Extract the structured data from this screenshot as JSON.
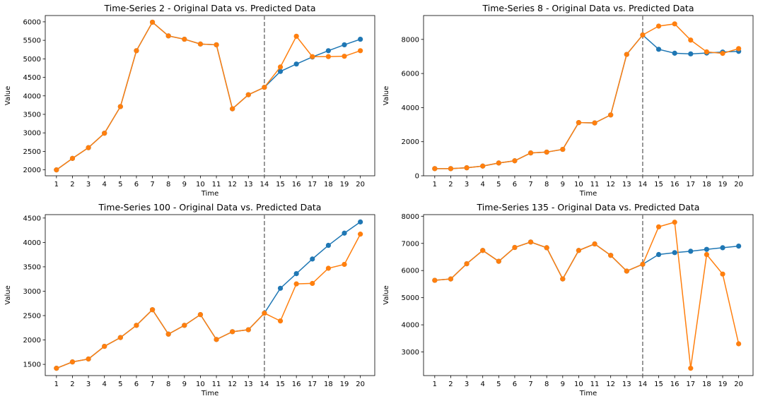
{
  "colors": {
    "original": "#1f77b4",
    "predicted": "#ff7f0e",
    "divider": "#808080"
  },
  "chart_data": [
    {
      "type": "line",
      "title": "Time-Series 2 - Original Data vs. Predicted Data",
      "xlabel": "Time",
      "ylabel": "Value",
      "x": [
        1,
        2,
        3,
        4,
        5,
        6,
        7,
        8,
        9,
        10,
        11,
        12,
        13,
        14,
        15,
        16,
        17,
        18,
        19,
        20
      ],
      "xlim": [
        0.3,
        20.9
      ],
      "ylim": [
        1840,
        6170
      ],
      "yticks": [
        2000,
        2500,
        3000,
        3500,
        4000,
        4500,
        5000,
        5500,
        6000
      ],
      "divider_x": 14,
      "series": [
        {
          "values": [
            2000,
            2310,
            2600,
            2990,
            3710,
            5220,
            5990,
            5620,
            5530,
            5400,
            5380,
            3650,
            4030,
            4230,
            4660,
            4860,
            5050,
            5220,
            5380,
            5530
          ]
        },
        {
          "values": [
            2000,
            2310,
            2600,
            2990,
            3710,
            5220,
            5990,
            5620,
            5530,
            5400,
            5380,
            3650,
            4030,
            4230,
            4780,
            5610,
            5060,
            5060,
            5070,
            5220
          ]
        }
      ]
    },
    {
      "type": "line",
      "title": "Time-Series 8 - Original Data vs. Predicted Data",
      "xlabel": "Time",
      "ylabel": "Value",
      "x": [
        1,
        2,
        3,
        4,
        5,
        6,
        7,
        8,
        9,
        10,
        11,
        12,
        13,
        14,
        15,
        16,
        17,
        18,
        19,
        20
      ],
      "xlim": [
        0.3,
        20.9
      ],
      "ylim": [
        0,
        9400
      ],
      "yticks": [
        0,
        2000,
        4000,
        6000,
        8000
      ],
      "divider_x": 14,
      "series": [
        {
          "values": [
            420,
            420,
            470,
            570,
            750,
            880,
            1340,
            1390,
            1550,
            3120,
            3100,
            3570,
            7120,
            8260,
            7420,
            7190,
            7150,
            7200,
            7260,
            7300
          ]
        },
        {
          "values": [
            420,
            420,
            470,
            570,
            750,
            880,
            1340,
            1390,
            1550,
            3120,
            3100,
            3570,
            7120,
            8260,
            8780,
            8910,
            7960,
            7270,
            7180,
            7460
          ]
        }
      ]
    },
    {
      "type": "line",
      "title": "Time-Series 100 - Original Data vs. Predicted Data",
      "xlabel": "Time",
      "ylabel": "Value",
      "x": [
        1,
        2,
        3,
        4,
        5,
        6,
        7,
        8,
        9,
        10,
        11,
        12,
        13,
        14,
        15,
        16,
        17,
        18,
        19,
        20
      ],
      "xlim": [
        0.3,
        20.9
      ],
      "ylim": [
        1270,
        4570
      ],
      "yticks": [
        1500,
        2000,
        2500,
        3000,
        3500,
        4000,
        4500
      ],
      "divider_x": 14,
      "series": [
        {
          "values": [
            1420,
            1550,
            1610,
            1870,
            2050,
            2300,
            2620,
            2120,
            2300,
            2520,
            2010,
            2170,
            2210,
            2550,
            3060,
            3360,
            3660,
            3940,
            4190,
            4420
          ]
        },
        {
          "values": [
            1420,
            1550,
            1610,
            1870,
            2050,
            2300,
            2620,
            2120,
            2300,
            2520,
            2010,
            2170,
            2210,
            2550,
            2390,
            3150,
            3160,
            3470,
            3550,
            4170
          ]
        }
      ]
    },
    {
      "type": "line",
      "title": "Time-Series 135 - Original Data vs. Predicted Data",
      "xlabel": "Time",
      "ylabel": "Value",
      "x": [
        1,
        2,
        3,
        4,
        5,
        6,
        7,
        8,
        9,
        10,
        11,
        12,
        13,
        14,
        15,
        16,
        17,
        18,
        19,
        20
      ],
      "xlim": [
        0.3,
        20.9
      ],
      "ylim": [
        2130,
        8060
      ],
      "yticks": [
        3000,
        4000,
        5000,
        6000,
        7000,
        8000
      ],
      "divider_x": 14,
      "series": [
        {
          "values": [
            5640,
            5690,
            6250,
            6740,
            6340,
            6850,
            7050,
            6840,
            5690,
            6740,
            6980,
            6560,
            5980,
            6230,
            6590,
            6660,
            6710,
            6780,
            6840,
            6900
          ]
        },
        {
          "values": [
            5640,
            5690,
            6250,
            6740,
            6340,
            6850,
            7050,
            6840,
            5690,
            6740,
            6980,
            6560,
            5980,
            6230,
            7610,
            7780,
            2400,
            6590,
            5870,
            3300
          ]
        }
      ]
    }
  ]
}
